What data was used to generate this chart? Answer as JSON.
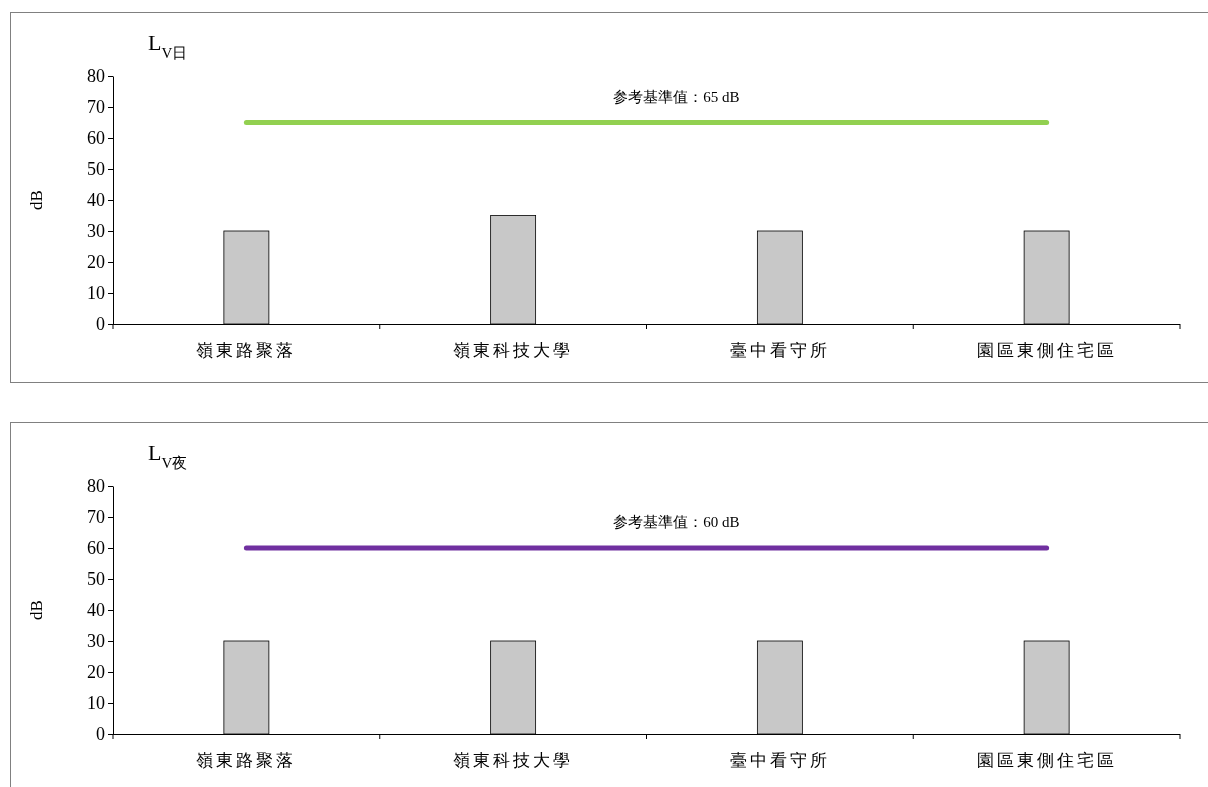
{
  "chart_data": [
    {
      "type": "bar",
      "title": "L$_{V日}$",
      "ylabel": "dB",
      "categories": [
        "嶺東路聚落",
        "嶺東科技大學",
        "臺中看守所",
        "園區東側住宅區"
      ],
      "values": [
        30,
        35,
        30,
        30
      ],
      "color": "#c8c8c8",
      "ylim": [
        0,
        80
      ],
      "yticks": [
        0,
        10,
        20,
        30,
        40,
        50,
        60,
        70,
        80
      ],
      "grid": false,
      "ref_lines": [
        {
          "axis": "y",
          "value": 65,
          "label": "参考基準值：65 dB",
          "color": "#92d050"
        }
      ]
    },
    {
      "type": "bar",
      "title": "L$_{V夜}$",
      "ylabel": "dB",
      "categories": [
        "嶺東路聚落",
        "嶺東科技大學",
        "臺中看守所",
        "園區東側住宅區"
      ],
      "values": [
        30,
        30,
        30,
        30
      ],
      "color": "#c8c8c8",
      "ylim": [
        0,
        80
      ],
      "yticks": [
        0,
        10,
        20,
        30,
        40,
        50,
        60,
        70,
        80
      ],
      "grid": false,
      "ref_lines": [
        {
          "axis": "y",
          "value": 60,
          "label": "参考基準值：60 dB",
          "color": "#7030a0"
        }
      ]
    }
  ]
}
